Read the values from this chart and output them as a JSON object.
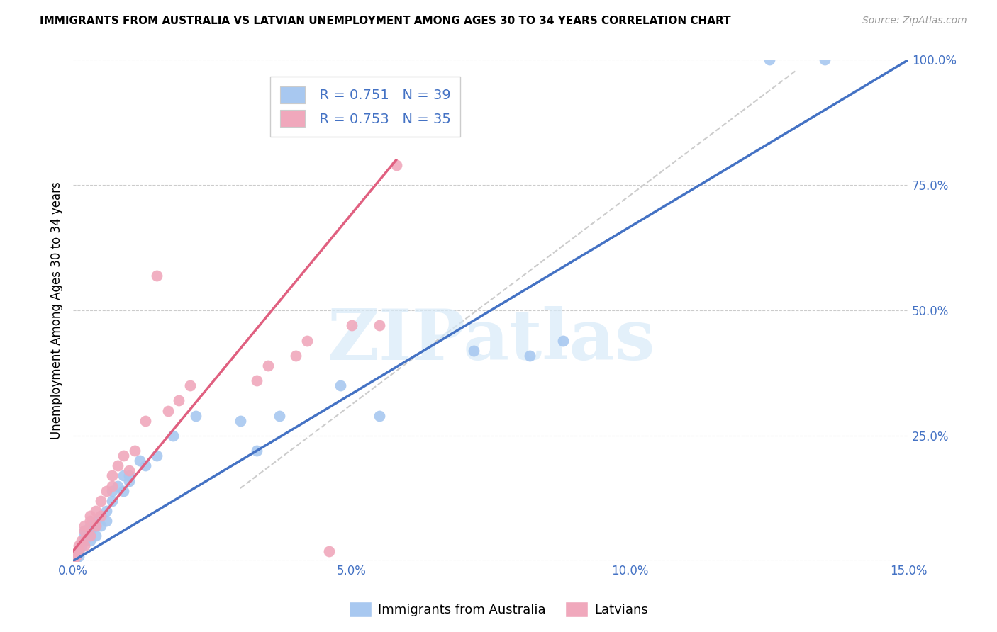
{
  "title": "IMMIGRANTS FROM AUSTRALIA VS LATVIAN UNEMPLOYMENT AMONG AGES 30 TO 34 YEARS CORRELATION CHART",
  "source": "Source: ZipAtlas.com",
  "ylabel": "Unemployment Among Ages 30 to 34 years",
  "xlim": [
    0.0,
    0.15
  ],
  "ylim": [
    0.0,
    1.0
  ],
  "xticks": [
    0.0,
    0.05,
    0.1,
    0.15
  ],
  "yticks": [
    0.0,
    0.25,
    0.5,
    0.75,
    1.0
  ],
  "ytick_labels": [
    "",
    "25.0%",
    "50.0%",
    "75.0%",
    "100.0%"
  ],
  "xtick_labels": [
    "0.0%",
    "5.0%",
    "10.0%",
    "15.0%"
  ],
  "r_blue": 0.751,
  "n_blue": 39,
  "r_pink": 0.753,
  "n_pink": 35,
  "blue_color": "#A8C8F0",
  "pink_color": "#F0A8BC",
  "blue_line_color": "#4472C4",
  "pink_line_color": "#E06080",
  "watermark": "ZIPatlas",
  "blue_scatter_x": [
    0.0005,
    0.001,
    0.001,
    0.0015,
    0.002,
    0.002,
    0.002,
    0.003,
    0.003,
    0.003,
    0.004,
    0.004,
    0.004,
    0.005,
    0.005,
    0.006,
    0.006,
    0.007,
    0.007,
    0.008,
    0.009,
    0.009,
    0.01,
    0.01,
    0.012,
    0.013,
    0.015,
    0.018,
    0.022,
    0.03,
    0.033,
    0.037,
    0.048,
    0.055,
    0.072,
    0.082,
    0.088,
    0.125,
    0.135
  ],
  "blue_scatter_y": [
    0.005,
    0.01,
    0.02,
    0.03,
    0.04,
    0.05,
    0.06,
    0.04,
    0.06,
    0.07,
    0.05,
    0.07,
    0.08,
    0.07,
    0.09,
    0.08,
    0.1,
    0.12,
    0.14,
    0.15,
    0.14,
    0.17,
    0.16,
    0.17,
    0.2,
    0.19,
    0.21,
    0.25,
    0.29,
    0.28,
    0.22,
    0.29,
    0.35,
    0.29,
    0.42,
    0.41,
    0.44,
    1.0,
    1.0
  ],
  "pink_scatter_x": [
    0.0003,
    0.0005,
    0.001,
    0.001,
    0.0015,
    0.002,
    0.002,
    0.002,
    0.003,
    0.003,
    0.003,
    0.004,
    0.004,
    0.005,
    0.005,
    0.006,
    0.007,
    0.007,
    0.008,
    0.009,
    0.01,
    0.011,
    0.013,
    0.015,
    0.017,
    0.019,
    0.021,
    0.033,
    0.035,
    0.04,
    0.042,
    0.046,
    0.05,
    0.055,
    0.058
  ],
  "pink_scatter_y": [
    0.005,
    0.01,
    0.02,
    0.03,
    0.04,
    0.03,
    0.06,
    0.07,
    0.05,
    0.08,
    0.09,
    0.07,
    0.1,
    0.09,
    0.12,
    0.14,
    0.15,
    0.17,
    0.19,
    0.21,
    0.18,
    0.22,
    0.28,
    0.57,
    0.3,
    0.32,
    0.35,
    0.36,
    0.39,
    0.41,
    0.44,
    0.02,
    0.47,
    0.47,
    0.79
  ],
  "blue_line_x": [
    0.0,
    0.15
  ],
  "blue_line_y": [
    0.0,
    1.0
  ],
  "pink_line_x": [
    0.0,
    0.058
  ],
  "pink_line_y": [
    0.02,
    0.8
  ],
  "diag_line_x": [
    0.03,
    0.13
  ],
  "diag_line_y": [
    0.145,
    0.98
  ],
  "legend_label_blue": "Immigrants from Australia",
  "legend_label_pink": "Latvians"
}
